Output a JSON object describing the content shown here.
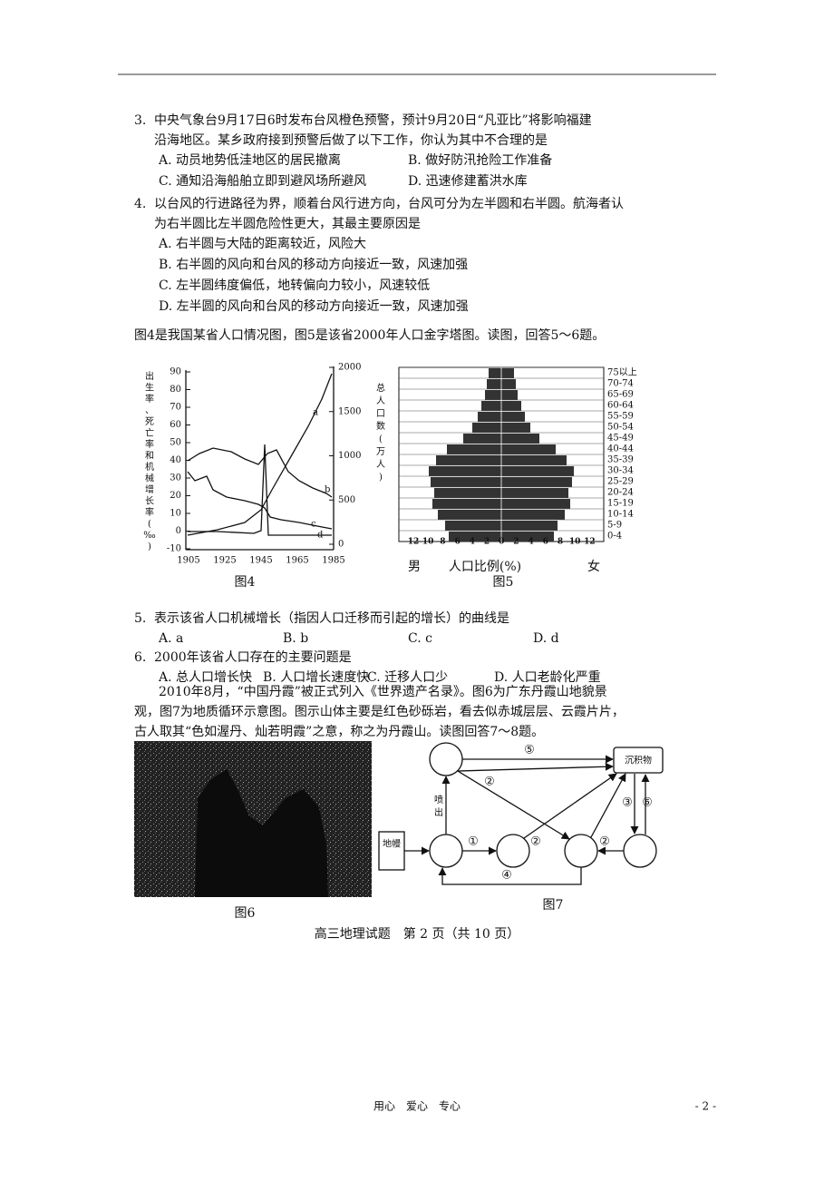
{
  "questions": [
    {
      "number": "3.",
      "lines": [
        "中央气象台9月17日6时发布台风橙色预警，预计9月20日“凡亚比”将影响福建",
        "沿海地区。某乡政府接到预警后做了以下工作，你认为其中不合理的是"
      ],
      "options": [
        "A. 动员地势低洼地区的居民撤离",
        "B. 做好防汛抢险工作准备",
        "C. 通知沿海船舶立即到避风场所避风",
        "D. 迅速修建蓄洪水库"
      ]
    },
    {
      "number": "4.",
      "lines": [
        "以台风的行进路径为界，顺着台风行进方向，台风可分为左半圆和右半圆。航海者认",
        "为右半圆比左半圆危险性更大，其最主要原因是"
      ],
      "options": [
        "A. 右半圆与大陆的距离较近，风险大",
        "B. 右半圆的风向和台风的移动方向接近一致，风速加强",
        "C. 左半圆纬度偏低，地转偏向力较小，风速较低",
        "D. 左半圆的风向和台风的移动方向接近一致，风速加强"
      ]
    }
  ],
  "intro1": "图4是我国某省人口情况图，图5是该省2000年人口金字塔图。读图，回答5～6题。",
  "figure4": {
    "ylabel": "出生率、死亡率和机械增长率(‰)",
    "yticks": [
      "90",
      "80",
      "70",
      "60",
      "50",
      "40",
      "30",
      "20",
      "10",
      "0",
      "-10"
    ],
    "y2label": "总人口数(万人)",
    "y2ticks": [
      "2000",
      "1500",
      "1000",
      "500",
      "0"
    ],
    "xticks": [
      "1905",
      "1925",
      "1945",
      "1965",
      "1985"
    ],
    "curves": [
      "a",
      "b",
      "c",
      "d"
    ],
    "caption": "图4"
  },
  "figure5": {
    "age_groups": [
      "75以上",
      "70-74",
      "65-69",
      "60-64",
      "55-59",
      "50-54",
      "45-49",
      "40-44",
      "35-39",
      "30-34",
      "25-29",
      "20-24",
      "15-19",
      "10-14",
      "5-9",
      "0-4"
    ],
    "xticks": [
      "12",
      "10",
      "8",
      "6",
      "4",
      "2",
      "0",
      "2",
      "4",
      "6",
      "8",
      "10",
      "12"
    ],
    "male": "男",
    "xlabel": "人口比例(%)",
    "female": "女",
    "caption": "图5"
  },
  "questions2": [
    {
      "number": "5.",
      "lines": [
        "表示该省人口机械增长（指因人口迁移而引起的增长）的曲线是"
      ],
      "options": [
        "A. a",
        "B. b",
        "C. c",
        "D. d"
      ]
    },
    {
      "number": "6.",
      "lines": [
        "2000年该省人口存在的主要问题是"
      ],
      "options": [
        "A. 总人口增长快",
        "B. 人口增长速度快",
        "C. 迁移人口少",
        "D. 人口老龄化严重"
      ]
    }
  ],
  "intro2": [
    "2010年8月，“中国丹霞”被正式列入《世界遗产名录》。图6为广东丹霞山地貌景",
    "观，图7为地质循环示意图。图示山体主要是红色砂砾岩，看去似赤城层层、云霞片片，",
    "古人取其“色如渥丹、灿若明霞”之意，称之为丹霞山。读图回答7～8题。"
  ],
  "figure6": {
    "caption": "图6"
  },
  "figure7": {
    "mantle": "地幔",
    "sediment": "沉积物",
    "eruption": "喷出",
    "arrows": [
      "⑤",
      "②",
      "①",
      "②",
      "②",
      "③",
      "⑥",
      "④"
    ],
    "caption": "图7"
  },
  "footer": "高三地理试题　第 2 页（共 10 页）",
  "page_footer": {
    "center": "用心　爱心　专心",
    "number": "- 2 -"
  }
}
